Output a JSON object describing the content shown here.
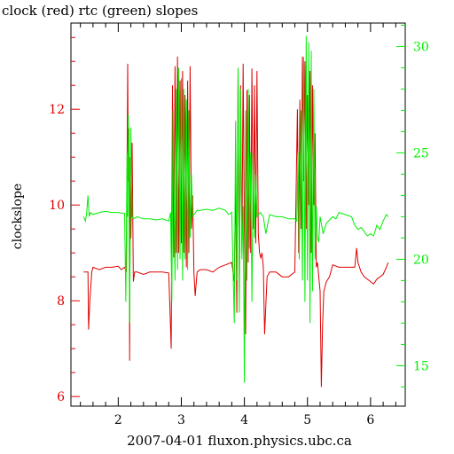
{
  "chart_data": {
    "type": "line",
    "title": "clock (red) rtc (green) slopes",
    "xlabel": "2007-04-01 fluxon.physics.ubc.ca",
    "ylabel": "clockslope",
    "y2label": "",
    "grid": false,
    "legend": "none",
    "xlim": [
      1.25,
      6.55
    ],
    "ylim": [
      5.8,
      13.8
    ],
    "y2lim": [
      13.1,
      31.1
    ],
    "x_ticks": [
      2,
      3,
      4,
      5,
      6
    ],
    "y_ticks": [
      6,
      8,
      10,
      12
    ],
    "y2_ticks": [
      15,
      20,
      25,
      30
    ],
    "colors": {
      "axis": "#000000",
      "clock": "#dd0000",
      "rtc": "#00ee00"
    },
    "series": [
      {
        "name": "clock",
        "axis": "left",
        "points": [
          [
            1.45,
            8.6
          ],
          [
            1.48,
            8.6
          ],
          [
            1.52,
            8.6
          ],
          [
            1.53,
            7.4
          ],
          [
            1.55,
            8.0
          ],
          [
            1.58,
            8.6
          ],
          [
            1.6,
            8.7
          ],
          [
            1.7,
            8.65
          ],
          [
            1.8,
            8.7
          ],
          [
            1.9,
            8.7
          ],
          [
            2.0,
            8.72
          ],
          [
            2.05,
            8.65
          ],
          [
            2.1,
            8.7
          ],
          [
            2.13,
            8.6
          ],
          [
            2.15,
            12.95
          ],
          [
            2.16,
            10.5
          ],
          [
            2.17,
            11.6
          ],
          [
            2.18,
            6.75
          ],
          [
            2.19,
            11.0
          ],
          [
            2.2,
            9.3
          ],
          [
            2.22,
            11.3
          ],
          [
            2.24,
            8.4
          ],
          [
            2.26,
            8.6
          ],
          [
            2.3,
            8.6
          ],
          [
            2.4,
            8.55
          ],
          [
            2.5,
            8.6
          ],
          [
            2.6,
            8.6
          ],
          [
            2.7,
            8.6
          ],
          [
            2.8,
            8.58
          ],
          [
            2.84,
            7.0
          ],
          [
            2.86,
            12.5
          ],
          [
            2.88,
            8.9
          ],
          [
            2.9,
            12.9
          ],
          [
            2.92,
            9.0
          ],
          [
            2.94,
            13.1
          ],
          [
            2.96,
            9.0
          ],
          [
            2.98,
            12.6
          ],
          [
            3.0,
            9.2
          ],
          [
            3.02,
            12.8
          ],
          [
            3.04,
            9.0
          ],
          [
            3.06,
            12.3
          ],
          [
            3.08,
            8.7
          ],
          [
            3.1,
            12.6
          ],
          [
            3.12,
            9.0
          ],
          [
            3.14,
            12.9
          ],
          [
            3.16,
            9.5
          ],
          [
            3.18,
            10.2
          ],
          [
            3.2,
            8.6
          ],
          [
            3.22,
            8.1
          ],
          [
            3.25,
            8.6
          ],
          [
            3.3,
            8.65
          ],
          [
            3.4,
            8.65
          ],
          [
            3.5,
            8.6
          ],
          [
            3.6,
            8.7
          ],
          [
            3.7,
            8.75
          ],
          [
            3.8,
            8.8
          ],
          [
            3.84,
            8.4
          ],
          [
            3.86,
            10.5
          ],
          [
            3.88,
            7.75
          ],
          [
            3.9,
            12.8
          ],
          [
            3.92,
            8.2
          ],
          [
            3.94,
            12.5
          ],
          [
            3.96,
            9.0
          ],
          [
            3.98,
            12.95
          ],
          [
            4.0,
            9.5
          ],
          [
            4.02,
            7.3
          ],
          [
            4.04,
            12.4
          ],
          [
            4.06,
            8.8
          ],
          [
            4.08,
            12.3
          ],
          [
            4.1,
            9.0
          ],
          [
            4.12,
            12.85
          ],
          [
            4.14,
            9.5
          ],
          [
            4.16,
            12.5
          ],
          [
            4.18,
            9.2
          ],
          [
            4.2,
            12.8
          ],
          [
            4.22,
            9.4
          ],
          [
            4.24,
            9.0
          ],
          [
            4.26,
            8.9
          ],
          [
            4.28,
            9.0
          ],
          [
            4.3,
            8.7
          ],
          [
            4.32,
            7.3
          ],
          [
            4.36,
            8.5
          ],
          [
            4.4,
            8.6
          ],
          [
            4.5,
            8.6
          ],
          [
            4.6,
            8.5
          ],
          [
            4.7,
            8.5
          ],
          [
            4.8,
            8.6
          ],
          [
            4.84,
            12.0
          ],
          [
            4.86,
            9.0
          ],
          [
            4.88,
            12.2
          ],
          [
            4.9,
            9.5
          ],
          [
            4.92,
            13.1
          ],
          [
            4.94,
            10.5
          ],
          [
            4.96,
            13.0
          ],
          [
            4.98,
            9.5
          ],
          [
            5.0,
            12.3
          ],
          [
            5.02,
            10.0
          ],
          [
            5.04,
            12.8
          ],
          [
            5.06,
            9.0
          ],
          [
            5.08,
            12.5
          ],
          [
            5.1,
            10.0
          ],
          [
            5.12,
            11.5
          ],
          [
            5.14,
            8.7
          ],
          [
            5.16,
            8.8
          ],
          [
            5.18,
            8.5
          ],
          [
            5.2,
            8.2
          ],
          [
            5.22,
            6.2
          ],
          [
            5.24,
            7.5
          ],
          [
            5.26,
            8.2
          ],
          [
            5.3,
            8.4
          ],
          [
            5.35,
            8.5
          ],
          [
            5.4,
            8.75
          ],
          [
            5.5,
            8.7
          ],
          [
            5.6,
            8.7
          ],
          [
            5.7,
            8.7
          ],
          [
            5.75,
            8.7
          ],
          [
            5.78,
            9.1
          ],
          [
            5.8,
            8.8
          ],
          [
            5.85,
            8.6
          ],
          [
            5.9,
            8.5
          ],
          [
            6.0,
            8.4
          ],
          [
            6.05,
            8.35
          ],
          [
            6.1,
            8.45
          ],
          [
            6.15,
            8.5
          ],
          [
            6.2,
            8.55
          ],
          [
            6.25,
            8.7
          ],
          [
            6.28,
            8.8
          ]
        ]
      },
      {
        "name": "rtc",
        "axis": "right",
        "points": [
          [
            1.45,
            22.0
          ],
          [
            1.48,
            21.8
          ],
          [
            1.5,
            22.2
          ],
          [
            1.52,
            23.0
          ],
          [
            1.54,
            22.0
          ],
          [
            1.56,
            22.2
          ],
          [
            1.6,
            22.1
          ],
          [
            1.7,
            22.2
          ],
          [
            1.8,
            22.25
          ],
          [
            1.9,
            22.2
          ],
          [
            2.0,
            22.2
          ],
          [
            2.1,
            22.15
          ],
          [
            2.12,
            18.0
          ],
          [
            2.14,
            25.0
          ],
          [
            2.15,
            22.0
          ],
          [
            2.16,
            26.8
          ],
          [
            2.17,
            24.0
          ],
          [
            2.18,
            17.0
          ],
          [
            2.2,
            26.2
          ],
          [
            2.22,
            22.0
          ],
          [
            2.24,
            21.9
          ],
          [
            2.3,
            22.0
          ],
          [
            2.4,
            21.9
          ],
          [
            2.5,
            21.9
          ],
          [
            2.6,
            21.85
          ],
          [
            2.7,
            21.9
          ],
          [
            2.8,
            21.8
          ],
          [
            2.83,
            22.2
          ],
          [
            2.85,
            18.0
          ],
          [
            2.87,
            27.0
          ],
          [
            2.9,
            19.0
          ],
          [
            2.92,
            28.0
          ],
          [
            2.94,
            19.5
          ],
          [
            2.96,
            29.0
          ],
          [
            2.98,
            20.0
          ],
          [
            3.0,
            28.5
          ],
          [
            3.02,
            19.0
          ],
          [
            3.04,
            28.0
          ],
          [
            3.06,
            20.0
          ],
          [
            3.08,
            27.5
          ],
          [
            3.1,
            19.5
          ],
          [
            3.12,
            27.0
          ],
          [
            3.14,
            21.0
          ],
          [
            3.16,
            24.0
          ],
          [
            3.18,
            22.0
          ],
          [
            3.2,
            22.1
          ],
          [
            3.25,
            22.3
          ],
          [
            3.3,
            22.3
          ],
          [
            3.4,
            22.35
          ],
          [
            3.5,
            22.3
          ],
          [
            3.6,
            22.4
          ],
          [
            3.7,
            22.3
          ],
          [
            3.75,
            22.1
          ],
          [
            3.8,
            22.2
          ],
          [
            3.84,
            17.0
          ],
          [
            3.86,
            26.5
          ],
          [
            3.88,
            19.0
          ],
          [
            3.9,
            29.0
          ],
          [
            3.92,
            17.5
          ],
          [
            3.94,
            28.0
          ],
          [
            3.96,
            20.0
          ],
          [
            3.98,
            22.5
          ],
          [
            4.0,
            14.2
          ],
          [
            4.02,
            27.0
          ],
          [
            4.04,
            19.0
          ],
          [
            4.06,
            28.0
          ],
          [
            4.08,
            20.5
          ],
          [
            4.1,
            25.0
          ],
          [
            4.12,
            18.0
          ],
          [
            4.14,
            25.0
          ],
          [
            4.16,
            21.0
          ],
          [
            4.18,
            24.0
          ],
          [
            4.2,
            22.0
          ],
          [
            4.25,
            22.2
          ],
          [
            4.3,
            22.0
          ],
          [
            4.34,
            21.2
          ],
          [
            4.38,
            21.8
          ],
          [
            4.4,
            22.1
          ],
          [
            4.5,
            22.0
          ],
          [
            4.6,
            22.0
          ],
          [
            4.7,
            21.9
          ],
          [
            4.8,
            21.9
          ],
          [
            4.83,
            21.8
          ],
          [
            4.85,
            25.0
          ],
          [
            4.87,
            20.0
          ],
          [
            4.9,
            27.0
          ],
          [
            4.92,
            19.0
          ],
          [
            4.94,
            29.5
          ],
          [
            4.96,
            18.0
          ],
          [
            4.98,
            30.5
          ],
          [
            5.0,
            19.0
          ],
          [
            5.02,
            30.2
          ],
          [
            5.04,
            17.0
          ],
          [
            5.06,
            29.8
          ],
          [
            5.08,
            18.5
          ],
          [
            5.1,
            28.0
          ],
          [
            5.12,
            20.0
          ],
          [
            5.14,
            22.5
          ],
          [
            5.16,
            21.0
          ],
          [
            5.18,
            20.8
          ],
          [
            5.2,
            22.0
          ],
          [
            5.25,
            21.2
          ],
          [
            5.3,
            21.7
          ],
          [
            5.4,
            22.0
          ],
          [
            5.45,
            21.9
          ],
          [
            5.5,
            22.2
          ],
          [
            5.6,
            22.1
          ],
          [
            5.7,
            22.0
          ],
          [
            5.75,
            21.6
          ],
          [
            5.8,
            21.4
          ],
          [
            5.85,
            21.5
          ],
          [
            5.9,
            21.3
          ],
          [
            5.95,
            21.1
          ],
          [
            6.0,
            21.2
          ],
          [
            6.05,
            21.1
          ],
          [
            6.1,
            21.6
          ],
          [
            6.15,
            21.4
          ],
          [
            6.2,
            21.8
          ],
          [
            6.25,
            22.1
          ],
          [
            6.28,
            22.0
          ]
        ]
      }
    ]
  }
}
